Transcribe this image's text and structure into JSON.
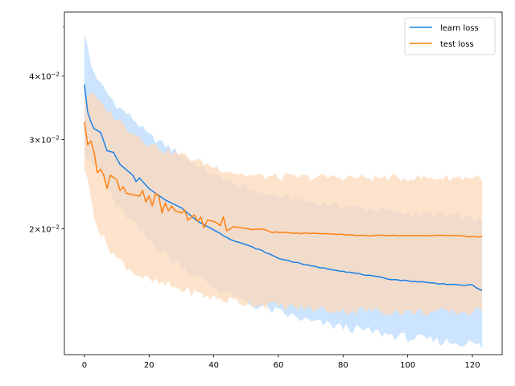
{
  "chart_data": {
    "type": "line",
    "title": "",
    "xlabel": "",
    "ylabel": "",
    "xlim": [
      -6.2,
      129.2
    ],
    "ylim": [
      0.0113,
      0.0535
    ],
    "yscale": "log",
    "grid": false,
    "legend_position": "top-right",
    "x_ticks": [
      {
        "value": 0,
        "label": "0"
      },
      {
        "value": 20,
        "label": "20"
      },
      {
        "value": 40,
        "label": "40"
      },
      {
        "value": 60,
        "label": "60"
      },
      {
        "value": 80,
        "label": "80"
      },
      {
        "value": 100,
        "label": "100"
      },
      {
        "value": 120,
        "label": "120"
      }
    ],
    "y_ticks": [
      {
        "value": 0.02,
        "mant": "2",
        "exp": "−2"
      },
      {
        "value": 0.03,
        "mant": "3",
        "exp": "−2"
      },
      {
        "value": 0.04,
        "mant": "4",
        "exp": "−2"
      }
    ],
    "y_minor_ticks": [
      0.05
    ],
    "series": [
      {
        "name": "learn loss",
        "color": "#1a80e6",
        "band_color": "#cce4fd",
        "keypoints": [
          [
            0,
            0.0385
          ],
          [
            1,
            0.034
          ],
          [
            2,
            0.0325
          ],
          [
            3,
            0.0315
          ],
          [
            5,
            0.031
          ],
          [
            7,
            0.0285
          ],
          [
            9,
            0.0283
          ],
          [
            11,
            0.0268
          ],
          [
            15,
            0.0255
          ],
          [
            16,
            0.0248
          ],
          [
            17,
            0.0252
          ],
          [
            20,
            0.024
          ],
          [
            25,
            0.0228
          ],
          [
            30,
            0.022
          ],
          [
            35,
            0.0207
          ],
          [
            40,
            0.0199
          ],
          [
            45,
            0.0191
          ],
          [
            50,
            0.0186
          ],
          [
            55,
            0.0181
          ],
          [
            60,
            0.0175
          ],
          [
            65,
            0.0172
          ],
          [
            70,
            0.0169
          ],
          [
            75,
            0.0167
          ],
          [
            80,
            0.0165
          ],
          [
            85,
            0.0163
          ],
          [
            90,
            0.0161
          ],
          [
            95,
            0.0159
          ],
          [
            100,
            0.0158
          ],
          [
            105,
            0.0157
          ],
          [
            110,
            0.0156
          ],
          [
            115,
            0.0155
          ],
          [
            120,
            0.0155
          ],
          [
            123,
            0.0151
          ]
        ],
        "band_upper_keypoints": [
          [
            0,
            0.049
          ],
          [
            2,
            0.042
          ],
          [
            5,
            0.0385
          ],
          [
            10,
            0.035
          ],
          [
            15,
            0.033
          ],
          [
            20,
            0.0305
          ],
          [
            30,
            0.028
          ],
          [
            40,
            0.0255
          ],
          [
            50,
            0.024
          ],
          [
            60,
            0.0232
          ],
          [
            70,
            0.0226
          ],
          [
            80,
            0.0222
          ],
          [
            90,
            0.0218
          ],
          [
            100,
            0.0215
          ],
          [
            110,
            0.0213
          ],
          [
            120,
            0.021
          ],
          [
            123,
            0.0207
          ]
        ],
        "band_lower_keypoints": [
          [
            0,
            0.0285
          ],
          [
            5,
            0.0255
          ],
          [
            10,
            0.0222
          ],
          [
            20,
            0.019
          ],
          [
            30,
            0.0168
          ],
          [
            40,
            0.0154
          ],
          [
            50,
            0.0143
          ],
          [
            60,
            0.0137
          ],
          [
            70,
            0.0131
          ],
          [
            80,
            0.0128
          ],
          [
            90,
            0.0125
          ],
          [
            100,
            0.0122
          ],
          [
            110,
            0.012
          ],
          [
            120,
            0.0119
          ],
          [
            123,
            0.0117
          ]
        ]
      },
      {
        "name": "test loss",
        "color": "#ff7f0e",
        "band_color": "#fdd9bb",
        "keypoints": [
          [
            0,
            0.0325
          ],
          [
            1,
            0.0293
          ],
          [
            2,
            0.0298
          ],
          [
            3,
            0.0283
          ],
          [
            4,
            0.0258
          ],
          [
            5,
            0.0262
          ],
          [
            6,
            0.0255
          ],
          [
            7,
            0.024
          ],
          [
            8,
            0.0255
          ],
          [
            10,
            0.025
          ],
          [
            11,
            0.0238
          ],
          [
            12,
            0.0242
          ],
          [
            13,
            0.0235
          ],
          [
            17,
            0.0232
          ],
          [
            18,
            0.0238
          ],
          [
            19,
            0.0226
          ],
          [
            20,
            0.0232
          ],
          [
            21,
            0.0222
          ],
          [
            22,
            0.0235
          ],
          [
            23,
            0.0232
          ],
          [
            24,
            0.0215
          ],
          [
            25,
            0.0225
          ],
          [
            26,
            0.0217
          ],
          [
            27,
            0.0222
          ],
          [
            28,
            0.0217
          ],
          [
            30,
            0.0215
          ],
          [
            31,
            0.0218
          ],
          [
            32,
            0.0208
          ],
          [
            34,
            0.0213
          ],
          [
            35,
            0.0207
          ],
          [
            36,
            0.0211
          ],
          [
            37,
            0.0201
          ],
          [
            38,
            0.0208
          ],
          [
            40,
            0.0207
          ],
          [
            42,
            0.0203
          ],
          [
            43,
            0.0211
          ],
          [
            44,
            0.0198
          ],
          [
            46,
            0.0202
          ],
          [
            50,
            0.02
          ],
          [
            52,
            0.0199
          ],
          [
            55,
            0.02
          ],
          [
            57,
            0.0198
          ],
          [
            58,
            0.0197
          ],
          [
            59,
            0.0197
          ],
          [
            60,
            0.0197
          ],
          [
            65,
            0.0196
          ],
          [
            70,
            0.0196
          ],
          [
            75,
            0.0196
          ],
          [
            80,
            0.0195
          ],
          [
            85,
            0.0194
          ],
          [
            90,
            0.0194
          ],
          [
            95,
            0.0194
          ],
          [
            100,
            0.0194
          ],
          [
            105,
            0.0194
          ],
          [
            110,
            0.0194
          ],
          [
            115,
            0.0194
          ],
          [
            120,
            0.0193
          ],
          [
            123,
            0.0193
          ]
        ],
        "band_upper_keypoints": [
          [
            0,
            0.0365
          ],
          [
            2,
            0.0372
          ],
          [
            5,
            0.0352
          ],
          [
            10,
            0.033
          ],
          [
            15,
            0.031
          ],
          [
            20,
            0.0295
          ],
          [
            25,
            0.0285
          ],
          [
            30,
            0.028
          ],
          [
            40,
            0.0265
          ],
          [
            50,
            0.0255
          ],
          [
            60,
            0.0253
          ],
          [
            70,
            0.0253
          ],
          [
            80,
            0.0253
          ],
          [
            90,
            0.0252
          ],
          [
            100,
            0.0252
          ],
          [
            110,
            0.0252
          ],
          [
            123,
            0.0253
          ]
        ],
        "band_lower_keypoints": [
          [
            0,
            0.0265
          ],
          [
            3,
            0.0215
          ],
          [
            5,
            0.0195
          ],
          [
            10,
            0.0175
          ],
          [
            15,
            0.0165
          ],
          [
            20,
            0.0158
          ],
          [
            30,
            0.0152
          ],
          [
            40,
            0.0146
          ],
          [
            50,
            0.0143
          ],
          [
            60,
            0.0141
          ],
          [
            70,
            0.0139
          ],
          [
            80,
            0.0138
          ],
          [
            90,
            0.0138
          ],
          [
            100,
            0.0137
          ],
          [
            110,
            0.0137
          ],
          [
            123,
            0.0137
          ]
        ]
      }
    ]
  }
}
